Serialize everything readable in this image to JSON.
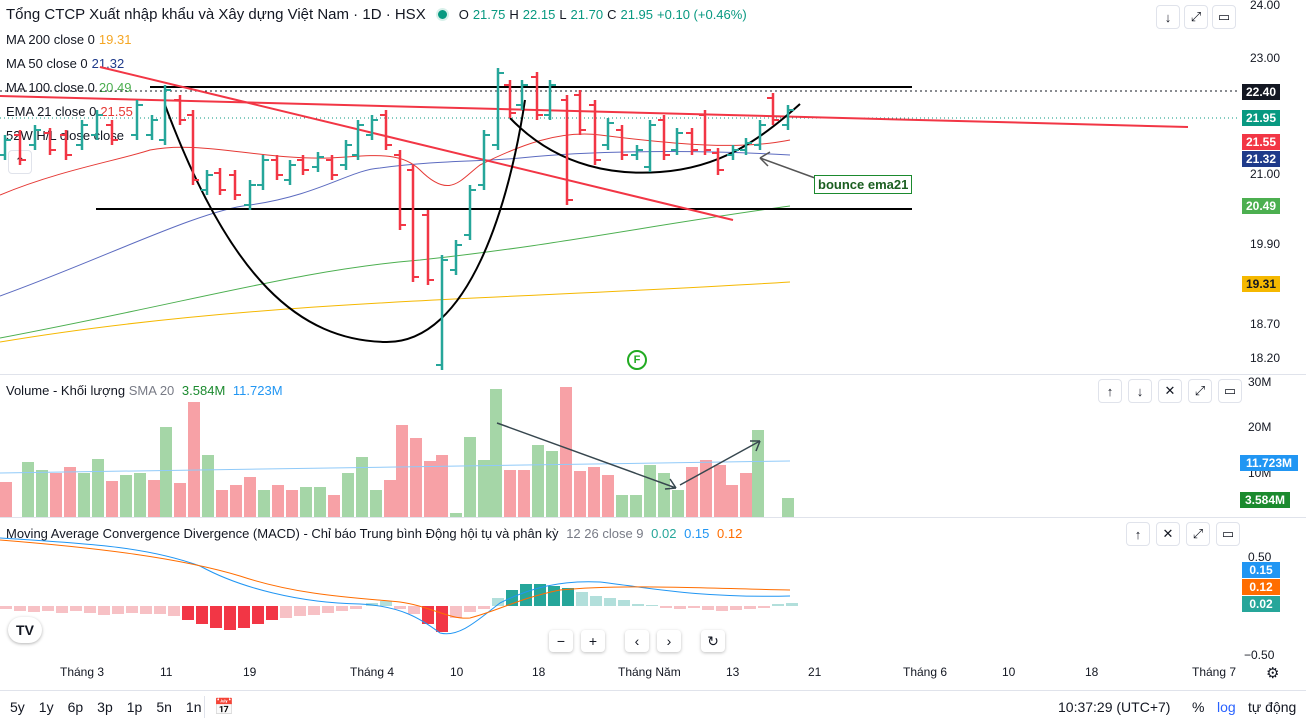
{
  "header": {
    "symbol_title": "Tổng CTCP Xuất nhập khẩu và Xây dựng Việt Nam · 1D · HSX",
    "ohlc": {
      "o_label": "O",
      "o": "21.75",
      "h_label": "H",
      "h": "22.15",
      "l_label": "L",
      "l": "21.70",
      "c_label": "C",
      "c": "21.95",
      "change": "+0.10 (+0.46%)"
    },
    "buttons": [
      "down-arrow",
      "fullscreen",
      "maximize"
    ]
  },
  "indicators": [
    {
      "label": "MA 200 close 0",
      "value": "19.31",
      "color": "#f5a623"
    },
    {
      "label": "MA 50 close 0",
      "value": "21.32",
      "color": "#1e3a8a"
    },
    {
      "label": "MA 100 close 0",
      "value": "20.49",
      "color": "#4caf50"
    },
    {
      "label": "EMA 21 close 0",
      "value": "21.55",
      "color": "#e53935"
    },
    {
      "label": "52W H/L close close",
      "value": "",
      "color": "#131722"
    }
  ],
  "price_axis": {
    "ticks": [
      "24.00",
      "23.00",
      "21.00",
      "19.90",
      "18.70",
      "18.20"
    ],
    "labels": [
      {
        "text": "22.40",
        "bg": "#131722"
      },
      {
        "text": "21.95",
        "bg": "#089981"
      },
      {
        "text": "21.55",
        "bg": "#f23645"
      },
      {
        "text": "21.32",
        "bg": "#1e3a8a"
      },
      {
        "text": "20.49",
        "bg": "#4caf50"
      },
      {
        "text": "19.31",
        "bg": "#f5b800"
      }
    ]
  },
  "annotation": {
    "text": "bounce ema21",
    "event_marker": "F"
  },
  "volume_pane": {
    "title": "Volume - Khối lượng",
    "sma_label": "SMA 20",
    "value1": "3.584M",
    "value2": "11.723M",
    "ticks": [
      "30M",
      "20M",
      "10M"
    ],
    "labels": [
      {
        "text": "11.723M",
        "bg": "#2196f3"
      },
      {
        "text": "3.584M",
        "bg": "#1b8a2e"
      }
    ]
  },
  "macd_pane": {
    "title": "Moving Average Convergence Divergence (MACD) - Chỉ báo Trung bình Động hội tụ và phân kỳ",
    "params": "12 26 close 9",
    "v1": "0.02",
    "v2": "0.15",
    "v3": "0.12",
    "ticks": [
      "0.50",
      "−0.50"
    ],
    "labels": [
      {
        "text": "0.15",
        "bg": "#2196f3"
      },
      {
        "text": "0.12",
        "bg": "#ff6d00"
      },
      {
        "text": "0.02",
        "bg": "#26a69a"
      }
    ]
  },
  "time_axis": [
    "Tháng 3",
    "11",
    "19",
    "Tháng 4",
    "10",
    "18",
    "Tháng Năm",
    "13",
    "21",
    "Tháng 6",
    "10",
    "18",
    "Tháng 7"
  ],
  "ranges": [
    "5y",
    "1y",
    "6p",
    "3p",
    "1p",
    "5n",
    "1n"
  ],
  "footer": {
    "time": "10:37:29 (UTC+7)",
    "percent": "%",
    "log": "log",
    "auto": "tự động"
  },
  "colors": {
    "up": "#26a69a",
    "down": "#f23645",
    "vol_up": "#a5d6a7",
    "vol_down": "#f7a1a6",
    "accent": "#2962ff"
  }
}
